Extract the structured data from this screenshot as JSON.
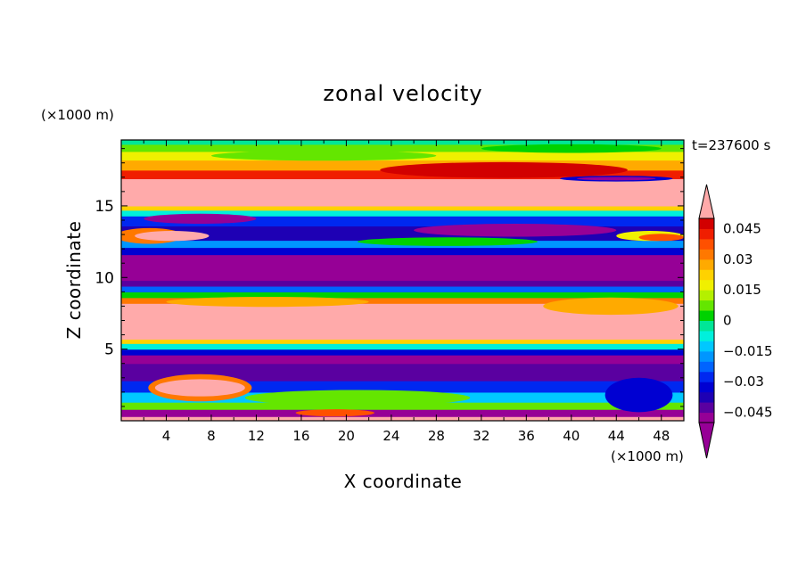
{
  "chart_data": {
    "type": "heatmap",
    "title": "zonal velocity",
    "xlabel": "X coordinate",
    "ylabel": "Z coordinate",
    "x_unit": "(×1000 m)",
    "y_unit": "(×1000 m)",
    "time_label": "t=237600 s",
    "xlim": [
      0,
      50
    ],
    "ylim": [
      0,
      19.6
    ],
    "x_ticks": [
      4,
      8,
      12,
      16,
      20,
      24,
      28,
      32,
      36,
      40,
      44,
      48
    ],
    "y_ticks": [
      5,
      10,
      15
    ],
    "colorbar": {
      "levels": [
        -0.05,
        -0.045,
        -0.04,
        -0.035,
        -0.03,
        -0.025,
        -0.02,
        -0.015,
        -0.01,
        -0.005,
        0,
        0.005,
        0.01,
        0.015,
        0.02,
        0.025,
        0.03,
        0.035,
        0.04,
        0.045,
        0.05
      ],
      "tick_values": [
        -0.045,
        -0.03,
        -0.015,
        0,
        0.015,
        0.03,
        0.045
      ],
      "tick_labels": [
        "−0.045",
        "−0.03",
        "−0.015",
        "0",
        "0.015",
        "0.03",
        "0.045"
      ],
      "colors": [
        "#960096",
        "#5a00a0",
        "#1e00b4",
        "#0000d2",
        "#0028f0",
        "#0064ff",
        "#0096ff",
        "#00c8ff",
        "#00f0dc",
        "#00e696",
        "#00d200",
        "#64e600",
        "#b4f000",
        "#f0f000",
        "#ffd200",
        "#ffaa00",
        "#ff7800",
        "#ff5000",
        "#f01e00",
        "#d20000"
      ],
      "under_color": "#960096",
      "over_color": "#ffaaaa"
    },
    "bands": [
      {
        "z": [
          0,
          0.3
        ],
        "u": 0.06
      },
      {
        "z": [
          0.3,
          0.8
        ],
        "u": -0.06
      },
      {
        "z": [
          0.8,
          1.3
        ],
        "u": 0.005
      },
      {
        "z": [
          1.3,
          2.0
        ],
        "u": -0.015
      },
      {
        "z": [
          2.0,
          2.8
        ],
        "u": -0.03
      },
      {
        "z": [
          2.8,
          4.0
        ],
        "u": -0.045
      },
      {
        "z": [
          4.0,
          4.6
        ],
        "u": -0.06
      },
      {
        "z": [
          4.6,
          5.0
        ],
        "u": -0.035
      },
      {
        "z": [
          5.0,
          5.4
        ],
        "u": -0.01
      },
      {
        "z": [
          5.4,
          5.7
        ],
        "u": 0.02
      },
      {
        "z": [
          5.7,
          8.2
        ],
        "u": 0.06
      },
      {
        "z": [
          8.2,
          8.6
        ],
        "u": 0.03
      },
      {
        "z": [
          8.6,
          9.0
        ],
        "u": 0.0
      },
      {
        "z": [
          9.0,
          9.4
        ],
        "u": -0.025
      },
      {
        "z": [
          9.4,
          9.8
        ],
        "u": -0.045
      },
      {
        "z": [
          9.8,
          11.6
        ],
        "u": -0.06
      },
      {
        "z": [
          11.6,
          12.1
        ],
        "u": -0.035
      },
      {
        "z": [
          12.1,
          12.6
        ],
        "u": -0.02
      },
      {
        "z": [
          12.6,
          13.6
        ],
        "u": -0.04
      },
      {
        "z": [
          13.6,
          14.3
        ],
        "u": -0.03
      },
      {
        "z": [
          14.3,
          14.7
        ],
        "u": -0.01
      },
      {
        "z": [
          14.7,
          15.0
        ],
        "u": 0.02
      },
      {
        "z": [
          15.0,
          16.9
        ],
        "u": 0.06
      },
      {
        "z": [
          16.9,
          17.5
        ],
        "u": 0.04
      },
      {
        "z": [
          17.5,
          18.2
        ],
        "u": 0.025
      },
      {
        "z": [
          18.2,
          18.8
        ],
        "u": 0.015
      },
      {
        "z": [
          18.8,
          19.3
        ],
        "u": 0.005
      },
      {
        "z": [
          19.3,
          19.6
        ],
        "u": -0.005
      }
    ],
    "features": [
      {
        "shape": "ellipse",
        "cx": 7.0,
        "cz": 2.3,
        "rx": 4.6,
        "rz": 0.95,
        "u": 0.03
      },
      {
        "shape": "ellipse",
        "cx": 7.0,
        "cz": 2.3,
        "rx": 4.0,
        "rz": 0.6,
        "u": 0.06
      },
      {
        "shape": "ellipse",
        "cx": 21.0,
        "cz": 1.6,
        "rx": 10.0,
        "rz": 0.55,
        "u": 0.005
      },
      {
        "shape": "ellipse",
        "cx": 19.0,
        "cz": 0.55,
        "rx": 3.5,
        "rz": 0.25,
        "u": 0.035
      },
      {
        "shape": "ellipse",
        "cx": 46.0,
        "cz": 1.8,
        "rx": 3.0,
        "rz": 1.2,
        "u": -0.035
      },
      {
        "shape": "ellipse",
        "cx": 2.5,
        "cz": 12.9,
        "rx": 3.0,
        "rz": 0.55,
        "u": 0.03
      },
      {
        "shape": "ellipse",
        "cx": 4.5,
        "cz": 12.9,
        "rx": 3.3,
        "rz": 0.35,
        "u": 0.06
      },
      {
        "shape": "ellipse",
        "cx": 47.0,
        "cz": 12.9,
        "rx": 3.0,
        "rz": 0.35,
        "u": 0.015
      },
      {
        "shape": "ellipse",
        "cx": 48.0,
        "cz": 12.8,
        "rx": 2.0,
        "rz": 0.25,
        "u": 0.035
      },
      {
        "shape": "ellipse",
        "cx": 35.0,
        "cz": 13.3,
        "rx": 9.0,
        "rz": 0.45,
        "u": -0.055
      },
      {
        "shape": "ellipse",
        "cx": 29.0,
        "cz": 12.5,
        "rx": 8.0,
        "rz": 0.3,
        "u": 0.0
      },
      {
        "shape": "ellipse",
        "cx": 43.5,
        "cz": 8.0,
        "rx": 6.0,
        "rz": 0.6,
        "u": 0.025
      },
      {
        "shape": "ellipse",
        "cx": 13.0,
        "cz": 8.3,
        "rx": 9.0,
        "rz": 0.35,
        "u": 0.025
      },
      {
        "shape": "ellipse",
        "cx": 7.0,
        "cz": 14.1,
        "rx": 5.0,
        "rz": 0.35,
        "u": -0.06
      },
      {
        "shape": "ellipse",
        "cx": 34.0,
        "cz": 17.5,
        "rx": 11.0,
        "rz": 0.55,
        "u": 0.045
      },
      {
        "shape": "ellipse",
        "cx": 44.0,
        "cz": 16.9,
        "rx": 5.0,
        "rz": 0.2,
        "u": -0.035
      },
      {
        "shape": "ellipse",
        "cx": 44.0,
        "cz": 16.9,
        "rx": 3.5,
        "rz": 0.12,
        "u": -0.055
      },
      {
        "shape": "ellipse",
        "cx": 18.0,
        "cz": 18.5,
        "rx": 10.0,
        "rz": 0.35,
        "u": 0.005
      },
      {
        "shape": "ellipse",
        "cx": 40.0,
        "cz": 19.0,
        "rx": 8.0,
        "rz": 0.3,
        "u": 0.0
      }
    ]
  }
}
